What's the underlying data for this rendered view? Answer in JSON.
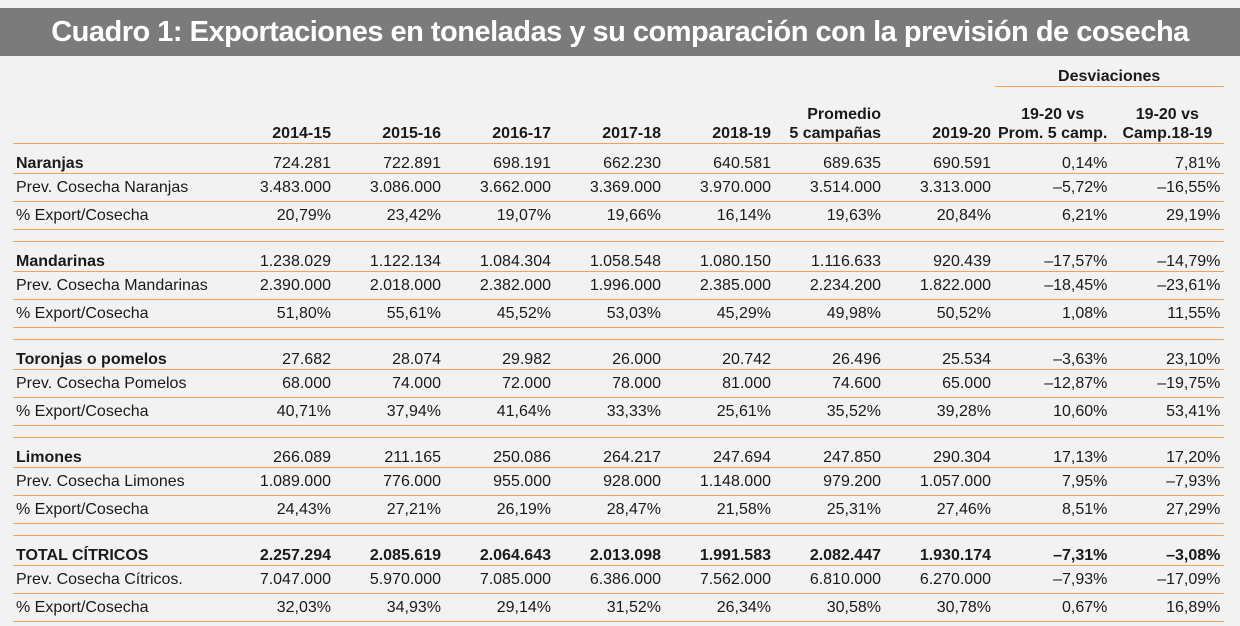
{
  "title": "Cuadro 1: Exportaciones en toneladas y su comparación con la previsión de cosecha",
  "colors": {
    "title_bg": "#7b7b7b",
    "rule": "#f0a15a",
    "panel_bg": "#f2f2f2"
  },
  "header": {
    "group_label": "Desviaciones",
    "columns": [
      {
        "line1": "",
        "line2": "2014-15"
      },
      {
        "line1": "",
        "line2": "2015-16"
      },
      {
        "line1": "",
        "line2": "2016-17"
      },
      {
        "line1": "",
        "line2": "2017-18"
      },
      {
        "line1": "",
        "line2": "2018-19"
      },
      {
        "line1": "Promedio",
        "line2": "5 campañas"
      },
      {
        "line1": "",
        "line2": "2019-20"
      },
      {
        "line1": "19-20 vs",
        "line2": "Prom. 5 camp."
      },
      {
        "line1": "19-20 vs",
        "line2": "Camp.18-19"
      }
    ]
  },
  "groups": [
    {
      "rows": [
        {
          "label": "Naranjas",
          "values": [
            "724.281",
            "722.891",
            "698.191",
            "662.230",
            "640.581",
            "689.635",
            "690.591",
            "0,14%",
            "7,81%"
          ]
        },
        {
          "label": "Prev. Cosecha Naranjas",
          "values": [
            "3.483.000",
            "3.086.000",
            "3.662.000",
            "3.369.000",
            "3.970.000",
            "3.514.000",
            "3.313.000",
            "–5,72%",
            "–16,55%"
          ]
        },
        {
          "label": "% Export/Cosecha",
          "values": [
            "20,79%",
            "23,42%",
            "19,07%",
            "19,66%",
            "16,14%",
            "19,63%",
            "20,84%",
            "6,21%",
            "29,19%"
          ]
        }
      ]
    },
    {
      "rows": [
        {
          "label": "Mandarinas",
          "values": [
            "1.238.029",
            "1.122.134",
            "1.084.304",
            "1.058.548",
            "1.080.150",
            "1.116.633",
            "920.439",
            "–17,57%",
            "–14,79%"
          ]
        },
        {
          "label": "Prev. Cosecha Mandarinas",
          "values": [
            "2.390.000",
            "2.018.000",
            "2.382.000",
            "1.996.000",
            "2.385.000",
            "2.234.200",
            "1.822.000",
            "–18,45%",
            "–23,61%"
          ]
        },
        {
          "label": "% Export/Cosecha",
          "values": [
            "51,80%",
            "55,61%",
            "45,52%",
            "53,03%",
            "45,29%",
            "49,98%",
            "50,52%",
            "1,08%",
            "11,55%"
          ]
        }
      ]
    },
    {
      "rows": [
        {
          "label": "Toronjas o pomelos",
          "values": [
            "27.682",
            "28.074",
            "29.982",
            "26.000",
            "20.742",
            "26.496",
            "25.534",
            "–3,63%",
            "23,10%"
          ]
        },
        {
          "label": "Prev. Cosecha Pomelos",
          "values": [
            "68.000",
            "74.000",
            "72.000",
            "78.000",
            "81.000",
            "74.600",
            "65.000",
            "–12,87%",
            "–19,75%"
          ]
        },
        {
          "label": "% Export/Cosecha",
          "values": [
            "40,71%",
            "37,94%",
            "41,64%",
            "33,33%",
            "25,61%",
            "35,52%",
            "39,28%",
            "10,60%",
            "53,41%"
          ]
        }
      ]
    },
    {
      "rows": [
        {
          "label": "Limones",
          "values": [
            "266.089",
            "211.165",
            "250.086",
            "264.217",
            "247.694",
            "247.850",
            "290.304",
            "17,13%",
            "17,20%"
          ]
        },
        {
          "label": "Prev. Cosecha Limones",
          "values": [
            "1.089.000",
            "776.000",
            "955.000",
            "928.000",
            "1.148.000",
            "979.200",
            "1.057.000",
            "7,95%",
            "–7,93%"
          ]
        },
        {
          "label": "% Export/Cosecha",
          "values": [
            "24,43%",
            "27,21%",
            "26,19%",
            "28,47%",
            "21,58%",
            "25,31%",
            "27,46%",
            "8,51%",
            "27,29%"
          ]
        }
      ]
    },
    {
      "rows": [
        {
          "label": "TOTAL CÍTRICOS",
          "values": [
            "2.257.294",
            "2.085.619",
            "2.064.643",
            "2.013.098",
            "1.991.583",
            "2.082.447",
            "1.930.174",
            "–7,31%",
            "–3,08%"
          ],
          "all_bold": true
        },
        {
          "label": "Prev. Cosecha Cítricos.",
          "values": [
            "7.047.000",
            "5.970.000",
            "7.085.000",
            "6.386.000",
            "7.562.000",
            "6.810.000",
            "6.270.000",
            "–7,93%",
            "–17,09%"
          ]
        },
        {
          "label": "% Export/Cosecha",
          "values": [
            "32,03%",
            "34,93%",
            "29,14%",
            "31,52%",
            "26,34%",
            "30,58%",
            "30,78%",
            "0,67%",
            "16,89%"
          ]
        }
      ]
    }
  ]
}
